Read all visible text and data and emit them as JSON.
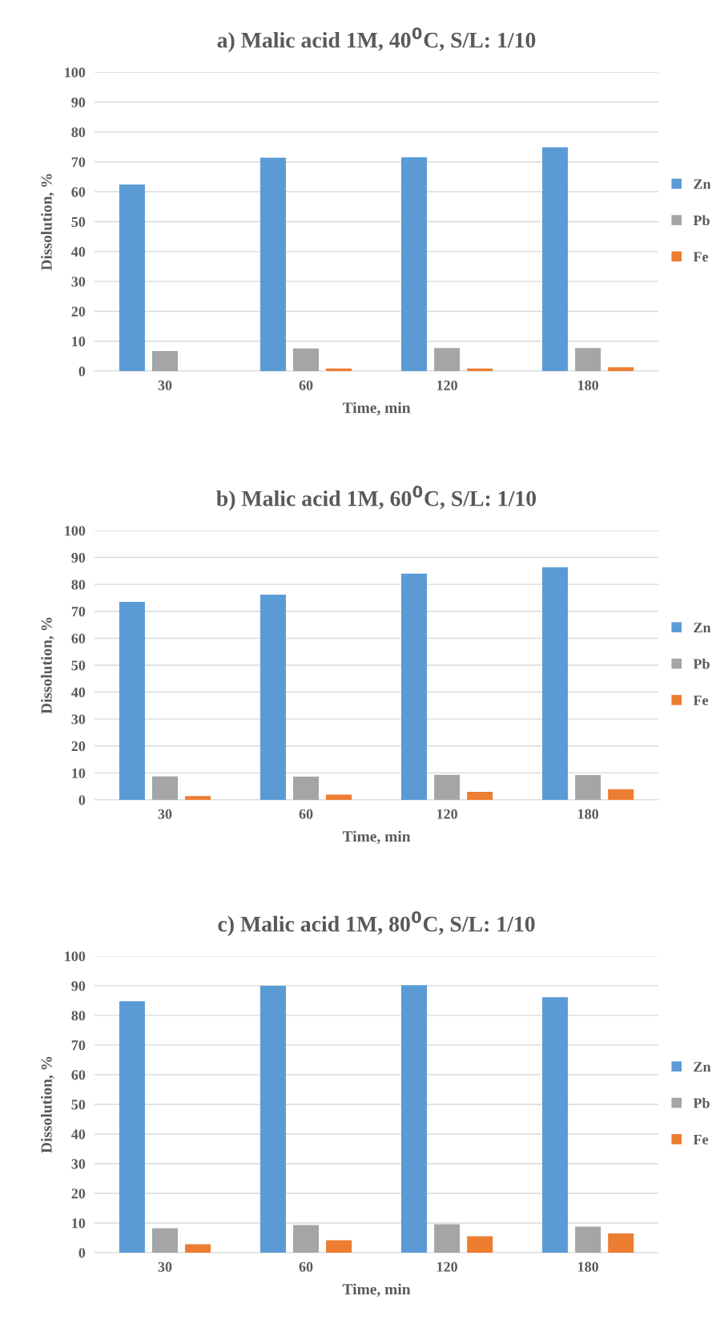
{
  "chart_data": [
    {
      "type": "bar",
      "title": "a) Malic acid 1M, 40$^{0}$C, S/L: 1/10",
      "xlabel": "Time, min",
      "ylabel": "Dissolution, %",
      "categories": [
        "30",
        "60",
        "120",
        "180"
      ],
      "ylim": [
        0,
        100
      ],
      "yticks": [
        0,
        10,
        20,
        30,
        40,
        50,
        60,
        70,
        80,
        90,
        100
      ],
      "grid": "y",
      "legend": "right",
      "series": [
        {
          "name": "Zn",
          "color": "#5b9bd5",
          "values": [
            62.4,
            71.4,
            71.5,
            74.9
          ]
        },
        {
          "name": "Pb",
          "color": "#a5a5a5",
          "values": [
            6.7,
            7.6,
            7.7,
            7.7
          ]
        },
        {
          "name": "Fe",
          "color": "#ed7d31",
          "values": [
            0,
            0.9,
            0.9,
            1.3
          ]
        }
      ]
    },
    {
      "type": "bar",
      "title": "b) Malic acid 1M, 60$^{0}$C, S/L: 1/10",
      "xlabel": "Time, min",
      "ylabel": "Dissolution, %",
      "categories": [
        "30",
        "60",
        "120",
        "180"
      ],
      "ylim": [
        0,
        100
      ],
      "yticks": [
        0,
        10,
        20,
        30,
        40,
        50,
        60,
        70,
        80,
        90,
        100
      ],
      "grid": "y",
      "legend": "right",
      "series": [
        {
          "name": "Zn",
          "color": "#5b9bd5",
          "values": [
            73.5,
            76.2,
            84.0,
            86.4
          ]
        },
        {
          "name": "Pb",
          "color": "#a5a5a5",
          "values": [
            8.7,
            8.6,
            9.3,
            9.2
          ]
        },
        {
          "name": "Fe",
          "color": "#ed7d31",
          "values": [
            1.4,
            1.9,
            3.0,
            3.9
          ]
        }
      ]
    },
    {
      "type": "bar",
      "title": "c) Malic acid 1M, 80$^{0}$C, S/L: 1/10",
      "xlabel": "Time, min",
      "ylabel": "Dissolution, %",
      "categories": [
        "30",
        "60",
        "120",
        "180"
      ],
      "ylim": [
        0,
        100
      ],
      "yticks": [
        0,
        10,
        20,
        30,
        40,
        50,
        60,
        70,
        80,
        90,
        100
      ],
      "grid": "y",
      "legend": "right",
      "series": [
        {
          "name": "Zn",
          "color": "#5b9bd5",
          "values": [
            84.8,
            90.0,
            90.2,
            86.1
          ]
        },
        {
          "name": "Pb",
          "color": "#a5a5a5",
          "values": [
            8.2,
            9.3,
            9.6,
            8.8
          ]
        },
        {
          "name": "Fe",
          "color": "#ed7d31",
          "values": [
            2.8,
            4.2,
            5.5,
            6.5
          ]
        }
      ]
    }
  ]
}
